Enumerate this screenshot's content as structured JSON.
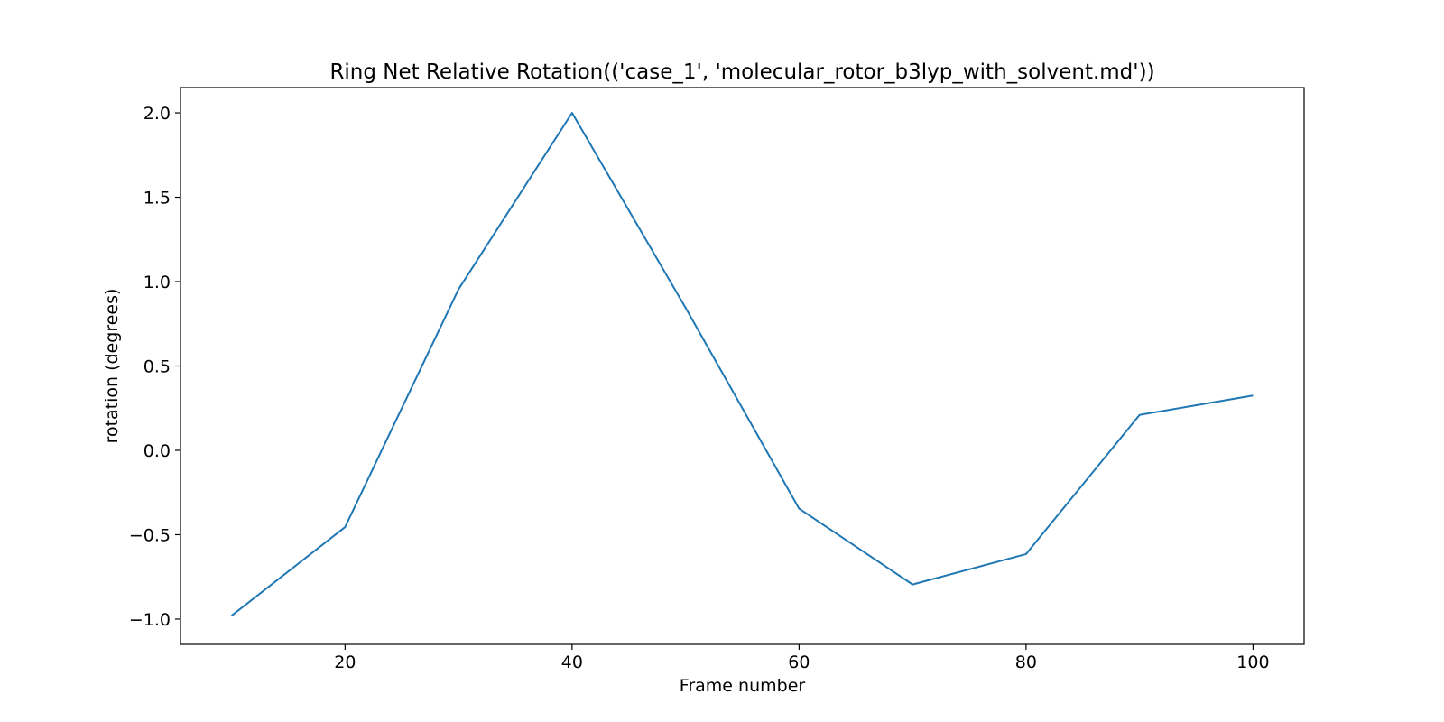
{
  "chart_data": {
    "type": "line",
    "title": "Ring Net Relative Rotation(('case_1', 'molecular_rotor_b3lyp_with_solvent.md'))",
    "xlabel": "Frame number",
    "ylabel": "rotation (degrees)",
    "xlim": [
      5.5,
      104.5
    ],
    "ylim": [
      -1.15,
      2.15
    ],
    "xticks": [
      20,
      40,
      60,
      80,
      100
    ],
    "xtick_labels": [
      "20",
      "40",
      "60",
      "80",
      "100"
    ],
    "yticks": [
      -1.0,
      -0.5,
      0.0,
      0.5,
      1.0,
      1.5,
      2.0
    ],
    "ytick_labels": [
      "−1.0",
      "−0.5",
      "0.0",
      "0.5",
      "1.0",
      "1.5",
      "2.0"
    ],
    "grid": false,
    "legend": "none",
    "series": [
      {
        "color": "#1f77b4",
        "x": [
          10,
          20,
          30,
          40,
          50,
          60,
          70,
          80,
          90,
          100
        ],
        "y": [
          -0.98,
          -0.455,
          0.955,
          2.0,
          0.845,
          -0.345,
          -0.795,
          -0.615,
          0.21,
          0.325
        ]
      }
    ]
  }
}
